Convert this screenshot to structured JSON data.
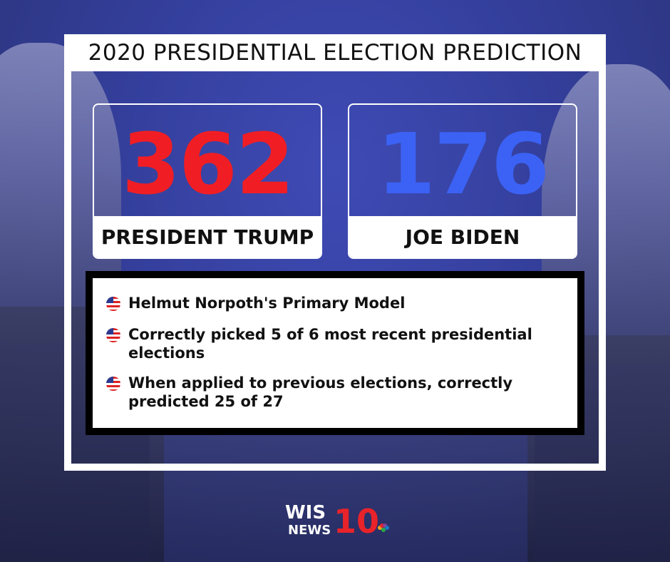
{
  "title": "2020 PRESIDENTIAL ELECTION PREDICTION",
  "candidates": [
    {
      "votes": 362,
      "name": "PRESIDENT TRUMP"
    },
    {
      "votes": 176,
      "name": "JOE BIDEN"
    }
  ],
  "facts": [
    "Helmut Norpoth's Primary Model",
    "Correctly picked 5 of 6 most recent presidential elections",
    "When applied to previous elections, correctly predicted 25 of 27"
  ],
  "logo": {
    "call_sign": "WIS",
    "news": "NEWS",
    "channel": "10"
  }
}
